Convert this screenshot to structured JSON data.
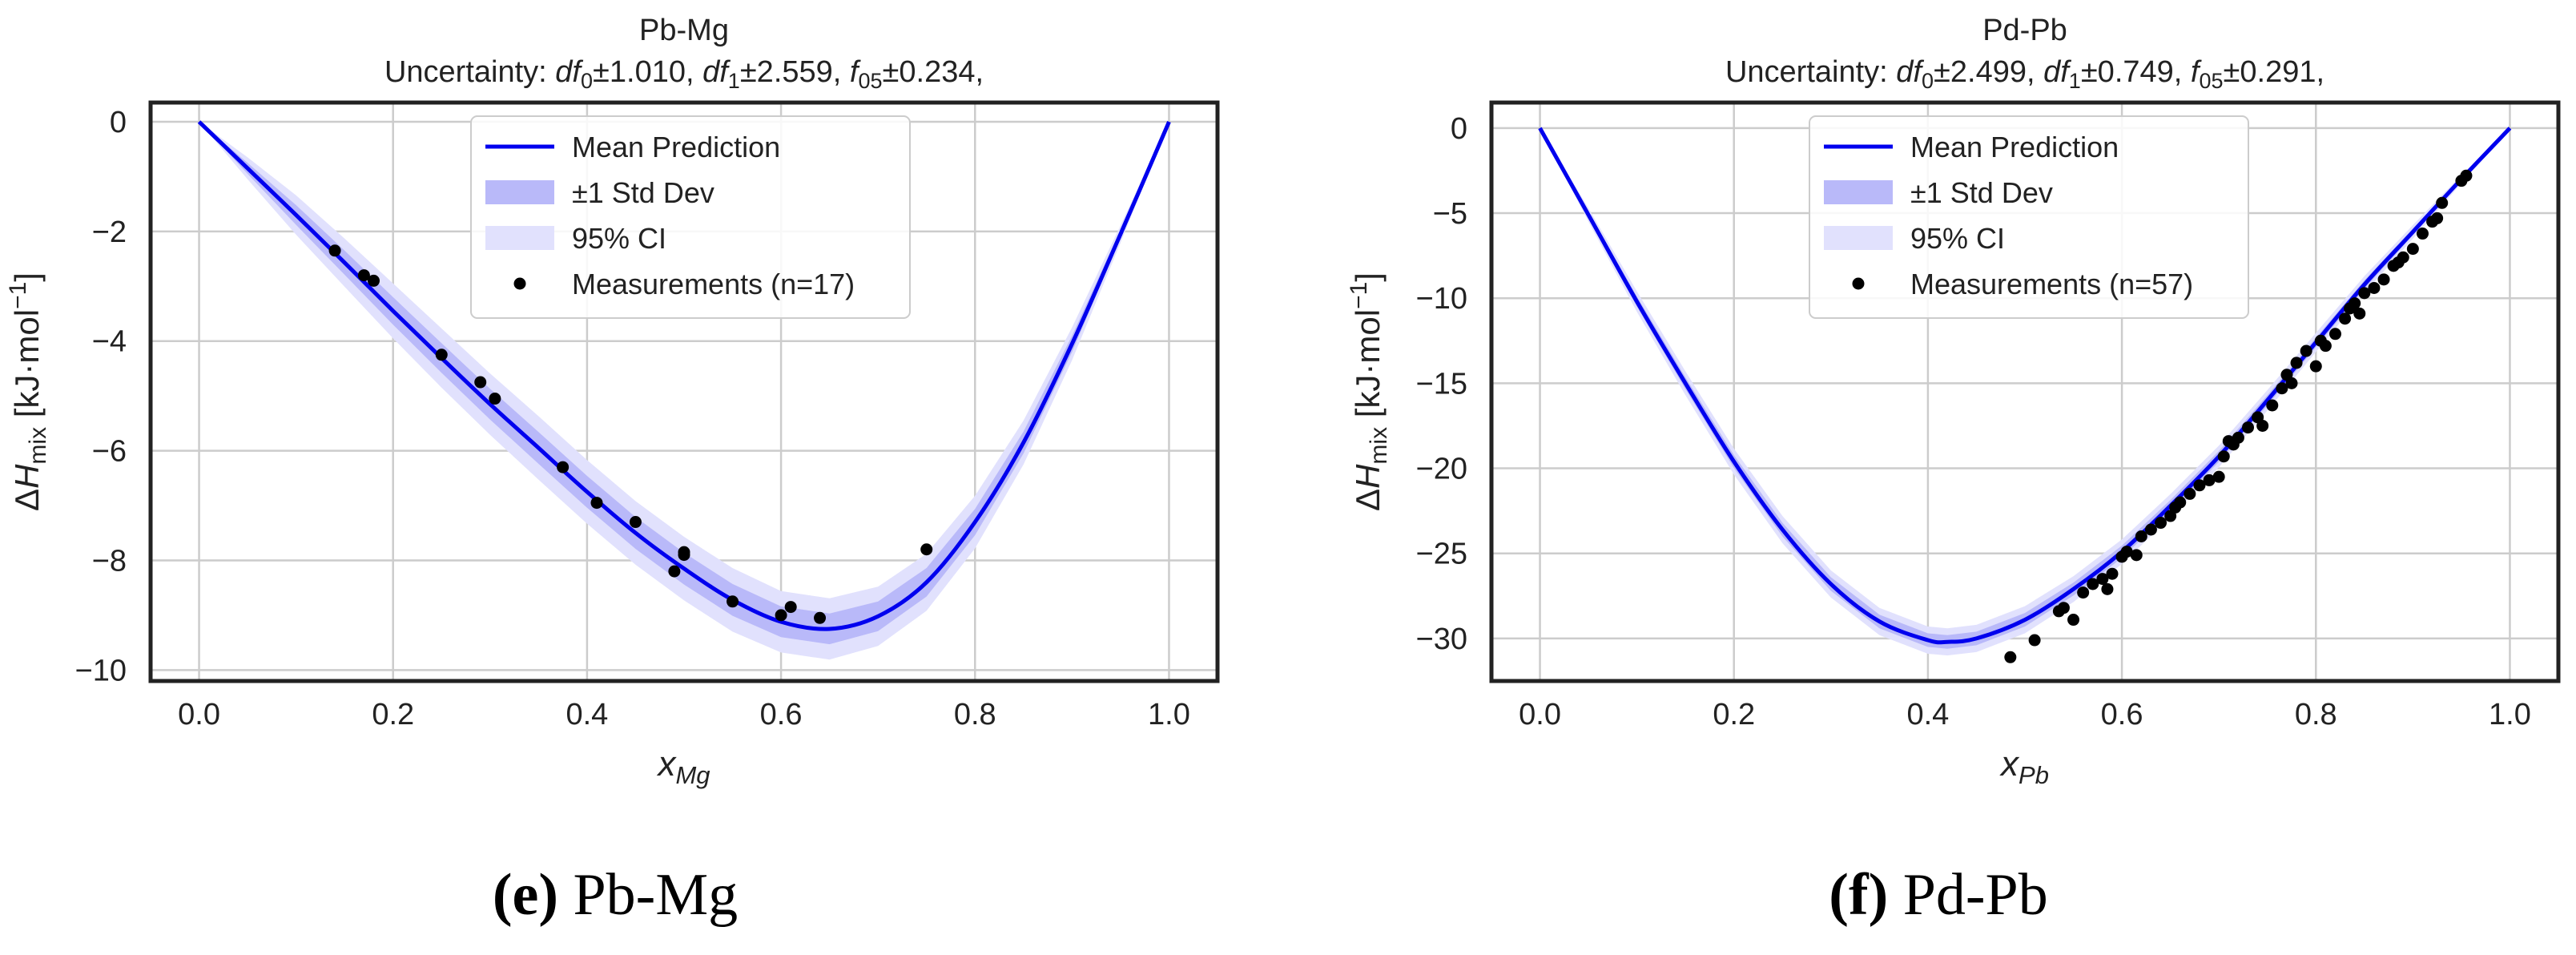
{
  "chart_data": [
    {
      "type": "line",
      "title": "Pb-Mg",
      "subtitle": {
        "prefix": "Uncertainty: ",
        "df0_label": "df",
        "df0_sub": "0",
        "df0_val": "±1.010, ",
        "df1_label": "df",
        "df1_sub": "1",
        "df1_val": "±2.559, ",
        "f05_label": "f",
        "f05_sub": "05",
        "f05_val": "±0.234,"
      },
      "xlabel": {
        "base": "x",
        "sub": "Mg"
      },
      "ylabel": {
        "delta": "Δ",
        "h": "H",
        "sub": "mix",
        "unit": " [kJ·mol",
        "exp": "−1",
        "close": "]"
      },
      "xlim": [
        -0.05,
        1.05
      ],
      "ylim": [
        -10.2,
        0.35
      ],
      "xticks": [
        0.0,
        0.2,
        0.4,
        0.6,
        0.8,
        1.0
      ],
      "xtick_labels": [
        "0.0",
        "0.2",
        "0.4",
        "0.6",
        "0.8",
        "1.0"
      ],
      "yticks": [
        0,
        -2,
        -4,
        -6,
        -8,
        -10
      ],
      "ytick_labels": [
        "0",
        "−2",
        "−4",
        "−6",
        "−8",
        "−10"
      ],
      "grid": true,
      "legend_position": "top-center",
      "legend": [
        "Mean Prediction",
        "±1 Std Dev",
        "95% CI",
        "Measurements (n=17)"
      ],
      "mean_curve": {
        "x": [
          0,
          0.05,
          0.1,
          0.15,
          0.2,
          0.25,
          0.3,
          0.35,
          0.4,
          0.45,
          0.5,
          0.55,
          0.6,
          0.65,
          0.7,
          0.75,
          0.8,
          0.85,
          0.9,
          0.95,
          1.0
        ],
        "y": [
          0,
          -0.85,
          -1.7,
          -2.57,
          -3.45,
          -4.31,
          -5.15,
          -5.95,
          -6.75,
          -7.5,
          -8.15,
          -8.72,
          -9.12,
          -9.25,
          -9.02,
          -8.4,
          -7.3,
          -5.85,
          -4.05,
          -2.05,
          0
        ]
      },
      "std_band": [
        0,
        0.1,
        0.18,
        0.22,
        0.25,
        0.27,
        0.28,
        0.29,
        0.29,
        0.29,
        0.29,
        0.29,
        0.28,
        0.28,
        0.27,
        0.26,
        0.24,
        0.2,
        0.15,
        0.08,
        0
      ],
      "ci_band": [
        0,
        0.2,
        0.36,
        0.44,
        0.5,
        0.54,
        0.56,
        0.58,
        0.58,
        0.58,
        0.58,
        0.58,
        0.56,
        0.56,
        0.54,
        0.52,
        0.48,
        0.4,
        0.3,
        0.16,
        0
      ],
      "measurements": {
        "x": [
          0.14,
          0.17,
          0.18,
          0.25,
          0.29,
          0.305,
          0.375,
          0.41,
          0.45,
          0.49,
          0.5,
          0.55,
          0.6,
          0.61,
          0.64,
          0.75,
          0.5
        ],
        "y": [
          -2.35,
          -2.8,
          -2.9,
          -4.25,
          -4.75,
          -5.05,
          -6.3,
          -6.95,
          -7.3,
          -8.2,
          -7.85,
          -8.75,
          -9.0,
          -8.85,
          -9.05,
          -7.8,
          -7.9
        ]
      },
      "colors": {
        "mean": "#0000ee",
        "std": "#b9b9f9",
        "ci": "#e1e1fd",
        "points": "#000000"
      }
    },
    {
      "type": "line",
      "title": "Pd-Pb",
      "subtitle": {
        "prefix": "Uncertainty: ",
        "df0_label": "df",
        "df0_sub": "0",
        "df0_val": "±2.499, ",
        "df1_label": "df",
        "df1_sub": "1",
        "df1_val": "±0.749, ",
        "f05_label": "f",
        "f05_sub": "05",
        "f05_val": "±0.291,"
      },
      "xlabel": {
        "base": "x",
        "sub": "Pb"
      },
      "ylabel": {
        "delta": "Δ",
        "h": "H",
        "sub": "mix",
        "unit": " [kJ·mol",
        "exp": "−1",
        "close": "]"
      },
      "xlim": [
        -0.05,
        1.05
      ],
      "ylim": [
        -32.5,
        1.5
      ],
      "xticks": [
        0.0,
        0.2,
        0.4,
        0.6,
        0.8,
        1.0
      ],
      "xtick_labels": [
        "0.0",
        "0.2",
        "0.4",
        "0.6",
        "0.8",
        "1.0"
      ],
      "yticks": [
        0,
        -5,
        -10,
        -15,
        -20,
        -25,
        -30
      ],
      "ytick_labels": [
        "0",
        "−5",
        "−10",
        "−15",
        "−20",
        "−25",
        "−30"
      ],
      "grid": true,
      "legend_position": "top-center",
      "legend": [
        "Mean Prediction",
        "±1 Std Dev",
        "95% CI",
        "Measurements (n=57)"
      ],
      "mean_curve": {
        "x": [
          0,
          0.05,
          0.1,
          0.15,
          0.2,
          0.25,
          0.3,
          0.35,
          0.4,
          0.42,
          0.45,
          0.5,
          0.55,
          0.6,
          0.65,
          0.7,
          0.75,
          0.8,
          0.85,
          0.9,
          0.95,
          1.0
        ],
        "y": [
          0,
          -5.1,
          -10.2,
          -15.0,
          -19.6,
          -23.6,
          -26.8,
          -29.0,
          -30.1,
          -30.2,
          -30.0,
          -28.9,
          -27.1,
          -24.9,
          -22.2,
          -19.3,
          -16.0,
          -12.6,
          -9.2,
          -6.1,
          -3.0,
          0
        ]
      },
      "std_band": [
        0,
        0.2,
        0.3,
        0.35,
        0.38,
        0.4,
        0.4,
        0.4,
        0.4,
        0.4,
        0.4,
        0.4,
        0.38,
        0.36,
        0.34,
        0.32,
        0.3,
        0.28,
        0.25,
        0.2,
        0.12,
        0
      ],
      "ci_band": [
        0,
        0.4,
        0.6,
        0.7,
        0.76,
        0.8,
        0.8,
        0.8,
        0.8,
        0.8,
        0.8,
        0.8,
        0.76,
        0.72,
        0.68,
        0.64,
        0.6,
        0.56,
        0.5,
        0.4,
        0.24,
        0
      ],
      "measurements": {
        "x": [
          0.485,
          0.51,
          0.535,
          0.54,
          0.55,
          0.56,
          0.57,
          0.58,
          0.585,
          0.59,
          0.6,
          0.605,
          0.615,
          0.62,
          0.63,
          0.64,
          0.65,
          0.655,
          0.66,
          0.67,
          0.68,
          0.69,
          0.7,
          0.705,
          0.71,
          0.715,
          0.72,
          0.73,
          0.74,
          0.745,
          0.755,
          0.765,
          0.77,
          0.775,
          0.78,
          0.79,
          0.8,
          0.805,
          0.81,
          0.82,
          0.83,
          0.835,
          0.84,
          0.845,
          0.85,
          0.86,
          0.87,
          0.88,
          0.885,
          0.89,
          0.9,
          0.91,
          0.92,
          0.925,
          0.93,
          0.95,
          0.955
        ],
        "y": [
          -31.1,
          -30.1,
          -28.4,
          -28.2,
          -28.9,
          -27.3,
          -26.8,
          -26.5,
          -27.1,
          -26.2,
          -25.2,
          -24.9,
          -25.1,
          -24.0,
          -23.6,
          -23.2,
          -22.8,
          -22.3,
          -22.0,
          -21.5,
          -21.0,
          -20.7,
          -20.5,
          -19.3,
          -18.4,
          -18.6,
          -18.2,
          -17.6,
          -17.0,
          -17.5,
          -16.3,
          -15.3,
          -14.5,
          -15.0,
          -13.8,
          -13.1,
          -14.0,
          -12.5,
          -12.8,
          -12.1,
          -11.2,
          -10.6,
          -10.3,
          -10.9,
          -9.7,
          -9.4,
          -8.9,
          -8.1,
          -7.9,
          -7.6,
          -7.1,
          -6.2,
          -5.5,
          -5.3,
          -4.4,
          -3.1,
          -2.8
        ]
      },
      "colors": {
        "mean": "#0000ee",
        "std": "#b9b9f9",
        "ci": "#e1e1fd",
        "points": "#000000"
      }
    }
  ],
  "captions": [
    {
      "letter": "(e)",
      "text": " Pb-Mg"
    },
    {
      "letter": "(f)",
      "text": " Pd-Pb"
    }
  ]
}
